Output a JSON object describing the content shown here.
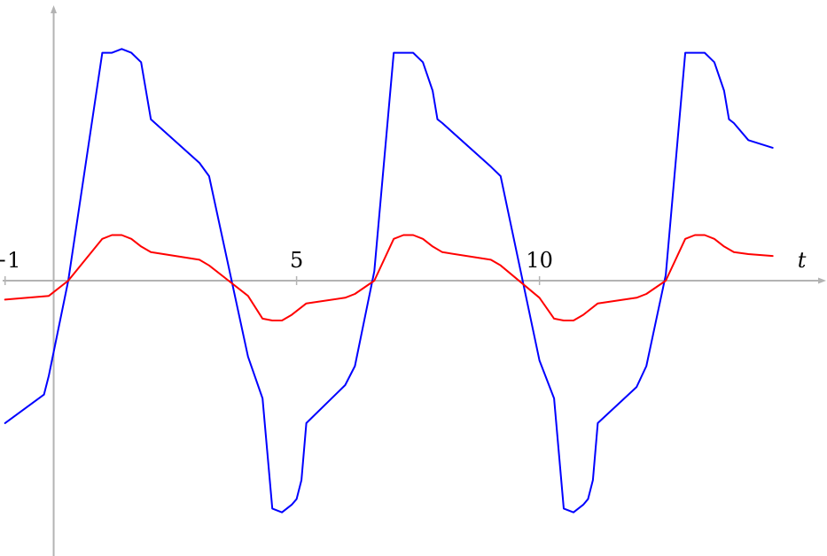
{
  "chart_data": {
    "type": "line",
    "xlabel": "t",
    "ylabel": "",
    "xlim": [
      -1.05,
      15.9
    ],
    "ylim": [
      -1.45,
      1.45
    ],
    "x_ticks": [
      {
        "value": -1,
        "label": "−1"
      },
      {
        "value": 5,
        "label": "5"
      },
      {
        "value": 10,
        "label": "10"
      }
    ],
    "grid": false,
    "series": [
      {
        "color": "#0000ff",
        "x": [
          -1.0,
          -0.2,
          -0.1,
          0.3,
          1.0,
          1.2,
          1.4,
          1.6,
          1.8,
          1.9,
          2.0,
          3.0,
          3.2,
          4.0,
          4.3,
          4.5,
          4.7,
          4.9,
          5.0,
          5.1,
          5.2,
          6.0,
          6.2,
          6.6,
          7.0,
          7.4,
          7.6,
          7.8,
          7.9,
          8.0,
          9.0,
          9.2,
          10.0,
          10.3,
          10.5,
          10.7,
          10.9,
          11.0,
          11.1,
          11.2,
          12.0,
          12.2,
          12.6,
          13.0,
          13.4,
          13.6,
          13.8,
          13.9,
          14.0,
          14.3,
          14.8
        ],
        "y": [
          -0.75,
          -0.6,
          -0.5,
          0.0,
          1.2,
          1.2,
          1.22,
          1.2,
          1.15,
          1.0,
          0.85,
          0.62,
          0.55,
          -0.4,
          -0.62,
          -1.2,
          -1.22,
          -1.18,
          -1.15,
          -1.05,
          -0.75,
          -0.55,
          -0.45,
          0.05,
          1.2,
          1.2,
          1.15,
          1.0,
          0.85,
          0.83,
          0.6,
          0.55,
          -0.42,
          -0.62,
          -1.2,
          -1.22,
          -1.18,
          -1.15,
          -1.05,
          -0.75,
          -0.56,
          -0.45,
          0.03,
          1.2,
          1.2,
          1.15,
          1.0,
          0.85,
          0.83,
          0.74,
          0.7
        ]
      },
      {
        "color": "#ff0000",
        "x": [
          -1.0,
          -0.1,
          0.3,
          1.0,
          1.2,
          1.4,
          1.6,
          1.8,
          2.0,
          3.0,
          3.2,
          4.0,
          4.3,
          4.5,
          4.7,
          4.9,
          5.2,
          6.0,
          6.2,
          6.6,
          7.0,
          7.2,
          7.4,
          7.6,
          7.8,
          8.0,
          9.0,
          9.2,
          10.0,
          10.3,
          10.5,
          10.7,
          10.9,
          11.2,
          12.0,
          12.2,
          12.6,
          13.0,
          13.2,
          13.4,
          13.6,
          13.8,
          14.0,
          14.3,
          14.8
        ],
        "y": [
          -0.1,
          -0.08,
          0.0,
          0.22,
          0.24,
          0.24,
          0.22,
          0.18,
          0.15,
          0.11,
          0.08,
          -0.08,
          -0.2,
          -0.21,
          -0.21,
          -0.18,
          -0.12,
          -0.09,
          -0.07,
          0.0,
          0.22,
          0.24,
          0.24,
          0.22,
          0.18,
          0.15,
          0.11,
          0.08,
          -0.09,
          -0.2,
          -0.21,
          -0.21,
          -0.18,
          -0.12,
          -0.09,
          -0.07,
          0.0,
          0.22,
          0.24,
          0.24,
          0.22,
          0.18,
          0.15,
          0.14,
          0.13
        ]
      }
    ]
  }
}
